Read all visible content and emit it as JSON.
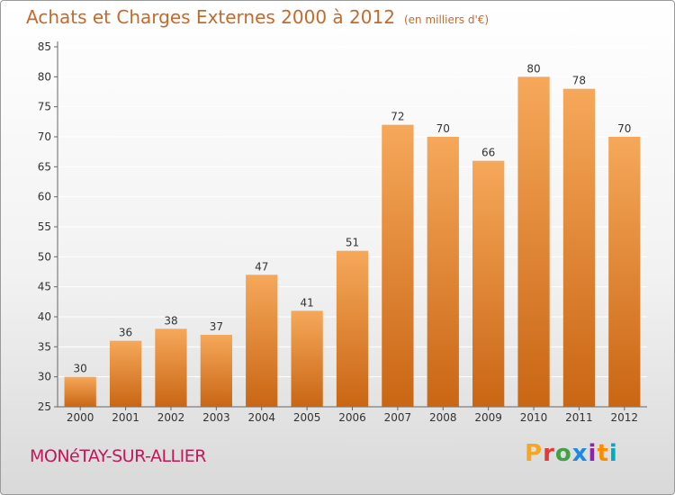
{
  "header": {
    "title": "Achats et Charges Externes 2000 à 2012",
    "unit": "(en milliers d'€)"
  },
  "footer": {
    "city": "MONéTAY-SUR-ALLIER",
    "brand_letters": [
      "P",
      "r",
      "o",
      "x",
      "i",
      "t",
      "i"
    ],
    "brand_colors": [
      "#f5a623",
      "#e53935",
      "#43a047",
      "#1e88e5",
      "#8e24aa",
      "#fb8c00",
      "#00acc1"
    ]
  },
  "colors": {
    "bar_top": "#f6a85a",
    "bar_bottom": "#c96614",
    "axis": "#666666",
    "grid": "#ffffff"
  },
  "chart_data": {
    "type": "bar",
    "title": "Achats et Charges Externes 2000 à 2012",
    "subtitle": "(en milliers d'€)",
    "categories": [
      "2000",
      "2001",
      "2002",
      "2003",
      "2004",
      "2005",
      "2006",
      "2007",
      "2008",
      "2009",
      "2010",
      "2011",
      "2012"
    ],
    "values": [
      30,
      36,
      38,
      37,
      47,
      41,
      51,
      72,
      70,
      66,
      80,
      78,
      70
    ],
    "ylim": [
      25,
      85
    ],
    "yticks": [
      25,
      30,
      35,
      40,
      45,
      50,
      55,
      60,
      65,
      70,
      75,
      80,
      85
    ],
    "grid": true
  }
}
